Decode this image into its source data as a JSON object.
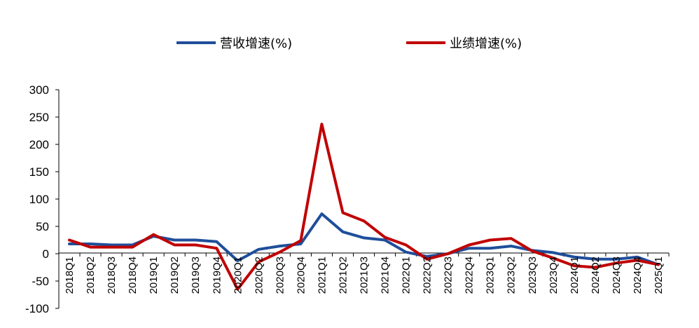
{
  "chart_data": {
    "type": "line",
    "title": "",
    "xlabel": "",
    "ylabel": "",
    "ylim": [
      -100,
      300
    ],
    "yticks": [
      300,
      250,
      200,
      150,
      100,
      50,
      0,
      -50,
      -100
    ],
    "grid": false,
    "legend_position": "top",
    "categories": [
      "2018Q1",
      "2018Q2",
      "2018Q3",
      "2018Q4",
      "2019Q1",
      "2019Q2",
      "2019Q3",
      "2019Q4",
      "2020Q1",
      "2020Q2",
      "2020Q3",
      "2020Q4",
      "2021Q1",
      "2021Q2",
      "2021Q3",
      "2021Q4",
      "2022Q1",
      "2022Q2",
      "2022Q3",
      "2022Q4",
      "2023Q1",
      "2023Q2",
      "2023Q3",
      "2023Q4",
      "2024Q1",
      "2024Q2",
      "2024Q3",
      "2024Q4",
      "2025Q1"
    ],
    "series": [
      {
        "name": "营收增速(%)",
        "color": "#1F4E9A",
        "values": [
          18,
          18,
          16,
          16,
          32,
          25,
          25,
          22,
          -13,
          8,
          14,
          18,
          73,
          40,
          29,
          25,
          3,
          -5,
          0,
          10,
          10,
          14,
          6,
          2,
          -6,
          -10,
          -10,
          -6,
          -20
        ]
      },
      {
        "name": "业绩增速(%)",
        "color": "#C00000",
        "values": [
          25,
          12,
          12,
          12,
          35,
          16,
          16,
          10,
          -65,
          -15,
          3,
          24,
          237,
          75,
          60,
          30,
          16,
          -10,
          0,
          16,
          25,
          28,
          5,
          -8,
          -22,
          -25,
          -17,
          -12,
          -20
        ]
      }
    ]
  }
}
